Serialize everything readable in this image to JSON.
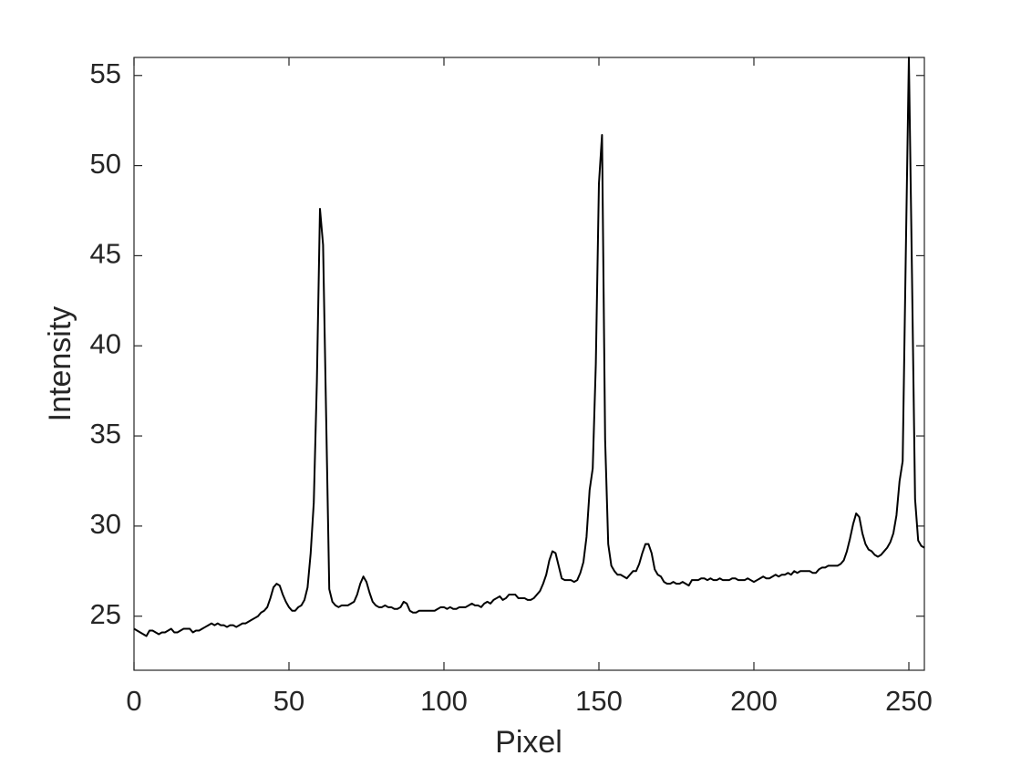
{
  "chart_data": {
    "type": "line",
    "x_label": "Pixel",
    "y_label": "Intensity",
    "x": [
      0,
      1,
      2,
      3,
      4,
      5,
      6,
      7,
      8,
      9,
      10,
      11,
      12,
      13,
      14,
      15,
      16,
      17,
      18,
      19,
      20,
      21,
      22,
      23,
      24,
      25,
      26,
      27,
      28,
      29,
      30,
      31,
      32,
      33,
      34,
      35,
      36,
      37,
      38,
      39,
      40,
      41,
      42,
      43,
      44,
      45,
      46,
      47,
      48,
      49,
      50,
      51,
      52,
      53,
      54,
      55,
      56,
      57,
      58,
      59,
      60,
      61,
      62,
      63,
      64,
      65,
      66,
      67,
      68,
      69,
      70,
      71,
      72,
      73,
      74,
      75,
      76,
      77,
      78,
      79,
      80,
      81,
      82,
      83,
      84,
      85,
      86,
      87,
      88,
      89,
      90,
      91,
      92,
      93,
      94,
      95,
      96,
      97,
      98,
      99,
      100,
      101,
      102,
      103,
      104,
      105,
      106,
      107,
      108,
      109,
      110,
      111,
      112,
      113,
      114,
      115,
      116,
      117,
      118,
      119,
      120,
      121,
      122,
      123,
      124,
      125,
      126,
      127,
      128,
      129,
      130,
      131,
      132,
      133,
      134,
      135,
      136,
      137,
      138,
      139,
      140,
      141,
      142,
      143,
      144,
      145,
      146,
      147,
      148,
      149,
      150,
      151,
      152,
      153,
      154,
      155,
      156,
      157,
      158,
      159,
      160,
      161,
      162,
      163,
      164,
      165,
      166,
      167,
      168,
      169,
      170,
      171,
      172,
      173,
      174,
      175,
      176,
      177,
      178,
      179,
      180,
      181,
      182,
      183,
      184,
      185,
      186,
      187,
      188,
      189,
      190,
      191,
      192,
      193,
      194,
      195,
      196,
      197,
      198,
      199,
      200,
      201,
      202,
      203,
      204,
      205,
      206,
      207,
      208,
      209,
      210,
      211,
      212,
      213,
      214,
      215,
      216,
      217,
      218,
      219,
      220,
      221,
      222,
      223,
      224,
      225,
      226,
      227,
      228,
      229,
      230,
      231,
      232,
      233,
      234,
      235,
      236,
      237,
      238,
      239,
      240,
      241,
      242,
      243,
      244,
      245,
      246,
      247,
      248,
      249,
      250,
      251,
      252,
      253,
      254,
      255
    ],
    "values": [
      24.3,
      24.2,
      24.1,
      24.0,
      23.9,
      24.2,
      24.2,
      24.1,
      24.0,
      24.1,
      24.1,
      24.2,
      24.3,
      24.1,
      24.1,
      24.2,
      24.3,
      24.3,
      24.3,
      24.1,
      24.2,
      24.2,
      24.3,
      24.4,
      24.5,
      24.6,
      24.5,
      24.6,
      24.5,
      24.5,
      24.4,
      24.5,
      24.5,
      24.4,
      24.5,
      24.6,
      24.6,
      24.7,
      24.8,
      24.9,
      25.0,
      25.2,
      25.3,
      25.5,
      26.0,
      26.6,
      26.8,
      26.7,
      26.2,
      25.8,
      25.5,
      25.3,
      25.3,
      25.5,
      25.6,
      25.9,
      26.6,
      28.5,
      31.3,
      38.0,
      47.6,
      45.6,
      36.0,
      26.5,
      25.8,
      25.6,
      25.5,
      25.6,
      25.6,
      25.6,
      25.7,
      25.8,
      26.2,
      26.8,
      27.2,
      26.9,
      26.3,
      25.8,
      25.6,
      25.5,
      25.5,
      25.6,
      25.5,
      25.5,
      25.4,
      25.4,
      25.5,
      25.8,
      25.7,
      25.3,
      25.2,
      25.2,
      25.3,
      25.3,
      25.3,
      25.3,
      25.3,
      25.3,
      25.4,
      25.5,
      25.5,
      25.4,
      25.5,
      25.4,
      25.4,
      25.5,
      25.5,
      25.5,
      25.6,
      25.7,
      25.6,
      25.6,
      25.5,
      25.7,
      25.8,
      25.7,
      25.9,
      26.0,
      26.1,
      25.9,
      26.0,
      26.2,
      26.2,
      26.2,
      26.0,
      26.0,
      26.0,
      25.9,
      25.9,
      26.0,
      26.2,
      26.4,
      26.8,
      27.3,
      28.1,
      28.6,
      28.5,
      27.8,
      27.1,
      27.0,
      27.0,
      27.0,
      26.9,
      27.0,
      27.4,
      28.0,
      29.4,
      32.0,
      33.2,
      39.0,
      49.0,
      51.7,
      34.8,
      29.0,
      27.8,
      27.5,
      27.3,
      27.3,
      27.2,
      27.1,
      27.3,
      27.5,
      27.5,
      27.9,
      28.5,
      29.0,
      29.0,
      28.5,
      27.6,
      27.3,
      27.2,
      26.9,
      26.8,
      26.8,
      26.9,
      26.8,
      26.8,
      26.9,
      26.8,
      26.7,
      27.0,
      27.0,
      27.0,
      27.1,
      27.1,
      27.0,
      27.1,
      27.0,
      27.0,
      27.1,
      27.0,
      27.0,
      27.0,
      27.1,
      27.1,
      27.0,
      27.0,
      27.0,
      27.1,
      27.0,
      26.9,
      27.0,
      27.1,
      27.2,
      27.1,
      27.1,
      27.2,
      27.3,
      27.2,
      27.3,
      27.3,
      27.4,
      27.3,
      27.5,
      27.4,
      27.5,
      27.5,
      27.5,
      27.5,
      27.4,
      27.4,
      27.6,
      27.7,
      27.7,
      27.8,
      27.8,
      27.8,
      27.8,
      27.9,
      28.1,
      28.6,
      29.3,
      30.1,
      30.7,
      30.5,
      29.6,
      29.0,
      28.7,
      28.6,
      28.4,
      28.3,
      28.4,
      28.6,
      28.8,
      29.1,
      29.6,
      30.6,
      32.5,
      33.6,
      45.0,
      56.0,
      44.0,
      31.5,
      29.2,
      28.9,
      28.8
    ],
    "color": "#000000",
    "xlim": [
      0,
      255
    ],
    "xticks": [
      0,
      50,
      100,
      150,
      200,
      250
    ],
    "ylim": [
      22,
      56
    ],
    "yticks": [
      25,
      30,
      35,
      40,
      45,
      50,
      55
    ],
    "grid": false
  }
}
